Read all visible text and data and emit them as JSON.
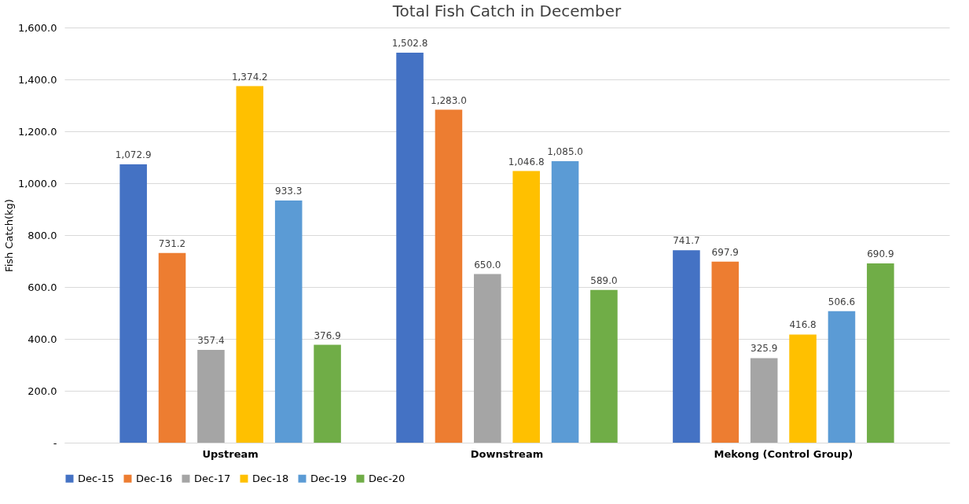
{
  "chart_data": {
    "type": "bar",
    "title": "Total Fish Catch in December",
    "ylabel": "Fish Catch(kg)",
    "categories": [
      "Upstream",
      "Downstream",
      "Mekong (Control Group)"
    ],
    "series": [
      {
        "name": "Dec-15",
        "color": "#4472c4",
        "values": [
          1072.9,
          1502.8,
          741.7
        ],
        "value_labels": [
          "1,072.9",
          "1,502.8",
          "741.7"
        ]
      },
      {
        "name": "Dec-16",
        "color": "#ed7d31",
        "values": [
          731.2,
          1283.0,
          697.9
        ],
        "value_labels": [
          "731.2",
          "1,283.0",
          "697.9"
        ]
      },
      {
        "name": "Dec-17",
        "color": "#a5a5a5",
        "values": [
          357.4,
          650.0,
          325.9
        ],
        "value_labels": [
          "357.4",
          "650.0",
          "325.9"
        ]
      },
      {
        "name": "Dec-18",
        "color": "#ffc000",
        "values": [
          1374.2,
          1046.8,
          416.8
        ],
        "value_labels": [
          "1,374.2",
          "1,046.8",
          "416.8"
        ]
      },
      {
        "name": "Dec-19",
        "color": "#5b9bd5",
        "values": [
          933.3,
          1085.0,
          506.6
        ],
        "value_labels": [
          "933.3",
          "1,085.0",
          "506.6"
        ]
      },
      {
        "name": "Dec-20",
        "color": "#70ad47",
        "values": [
          376.9,
          589.0,
          690.9
        ],
        "value_labels": [
          "376.9",
          "589.0",
          "690.9"
        ]
      }
    ],
    "ylim": [
      0,
      1600
    ],
    "yticks": [
      {
        "value": 0,
        "label": "-"
      },
      {
        "value": 200,
        "label": "200.0"
      },
      {
        "value": 400,
        "label": "400.0"
      },
      {
        "value": 600,
        "label": "600.0"
      },
      {
        "value": 800,
        "label": "800.0"
      },
      {
        "value": 1000,
        "label": "1,000.0"
      },
      {
        "value": 1200,
        "label": "1,200.0"
      },
      {
        "value": 1400,
        "label": "1,400.0"
      },
      {
        "value": 1600,
        "label": "1,600.0"
      }
    ],
    "grid": "y",
    "legend": "bottom"
  }
}
